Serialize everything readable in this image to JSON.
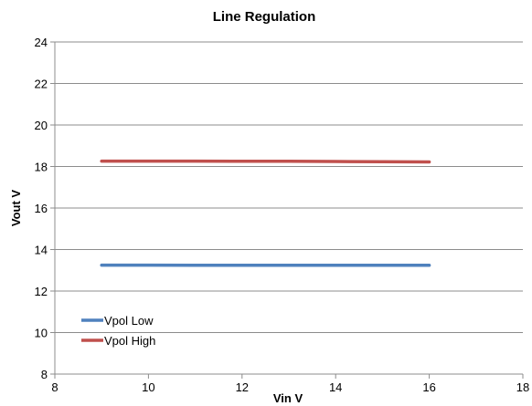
{
  "chart_data": {
    "type": "line",
    "title": "Line Regulation",
    "xlabel": "Vin V",
    "ylabel": "Vout V",
    "xlim": [
      8,
      18
    ],
    "ylim": [
      8,
      24
    ],
    "x_ticks": [
      "8",
      "10",
      "12",
      "14",
      "16",
      "18"
    ],
    "y_ticks": [
      "8",
      "10",
      "12",
      "14",
      "16",
      "18",
      "20",
      "22",
      "24"
    ],
    "grid": "horizontal",
    "legend_position": "bottom-left",
    "series": [
      {
        "name": "Vpol Low",
        "color": "#4F81BD",
        "x": [
          9,
          10,
          11,
          12,
          13,
          14,
          15,
          16
        ],
        "y": [
          13.25,
          13.25,
          13.24,
          13.24,
          13.24,
          13.24,
          13.24,
          13.24
        ]
      },
      {
        "name": "Vpol High",
        "color": "#C0504D",
        "x": [
          9,
          10,
          11,
          12,
          13,
          14,
          15,
          16
        ],
        "y": [
          18.26,
          18.26,
          18.26,
          18.25,
          18.25,
          18.24,
          18.23,
          18.22
        ]
      }
    ]
  }
}
